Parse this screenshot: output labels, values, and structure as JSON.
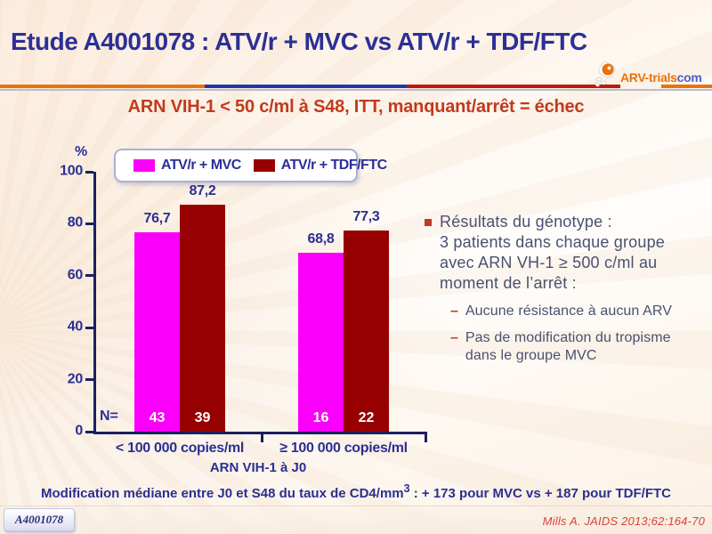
{
  "slide": {
    "title": "Etude A4001078 : ATV/r + MVC vs ATV/r + TDF/FTC",
    "subtitle": "ARN VIH-1 < 50 c/ml à S48, ITT, manquant/arrêt = échec",
    "logo": {
      "name": "ARV-trials",
      "tld": "com"
    },
    "footnote": {
      "prefix": "Modification médiane entre J0 et S48 du taux de CD4/mm",
      "sup": "3",
      "suffix": " : + 173 pour MVC vs + 187 pour TDF/FTC"
    },
    "badge": "A4001078",
    "reference": "Mills A. JAIDS 2013;62:164-70",
    "colors": {
      "title_navy": "#2b2f96",
      "subtitle_red": "#c23a1c",
      "divider_orange": "#e8730d",
      "divider_blue": "#2038a8",
      "divider_red": "#c21807",
      "divider_silver": "#babcc9",
      "reference_red": "#d84339"
    }
  },
  "chart_data": {
    "type": "bar",
    "title": "ARN VIH-1 < 50 c/ml à S48, ITT, manquant/arrêt = échec",
    "ylabel": "%",
    "xlabel": "ARN VIH-1 à J0",
    "ylim": [
      0,
      100
    ],
    "yticks": [
      0,
      20,
      40,
      60,
      80,
      100
    ],
    "grid": false,
    "legend_position": "top",
    "categories": [
      "< 100 000 copies/ml",
      "≥ 100 000 copies/ml"
    ],
    "series": [
      {
        "name": "ATV/r + MVC",
        "color": "#fa00fa",
        "values": [
          76.7,
          68.8
        ],
        "value_labels": [
          "76,7",
          "68,8"
        ],
        "n": [
          43,
          16
        ]
      },
      {
        "name": "ATV/r + TDF/FTC",
        "color": "#970000",
        "values": [
          87.2,
          77.3
        ],
        "value_labels": [
          "87,2",
          "77,3"
        ],
        "n": [
          39,
          22
        ]
      }
    ],
    "n_prefix": "N=",
    "axis_color": "#1b2060",
    "label_color": "#2a2f93"
  },
  "notes": {
    "main_lines": [
      "Résultats du génotype :",
      "3 patients dans chaque groupe",
      "avec ARN VH-1 ≥ 500 c/ml au",
      "moment de l’arrêt :"
    ],
    "dash": "–",
    "sub_bullets": [
      [
        "Aucune résistance à aucun ARV"
      ],
      [
        "Pas de modification du tropisme",
        "dans le groupe MVC"
      ]
    ]
  }
}
